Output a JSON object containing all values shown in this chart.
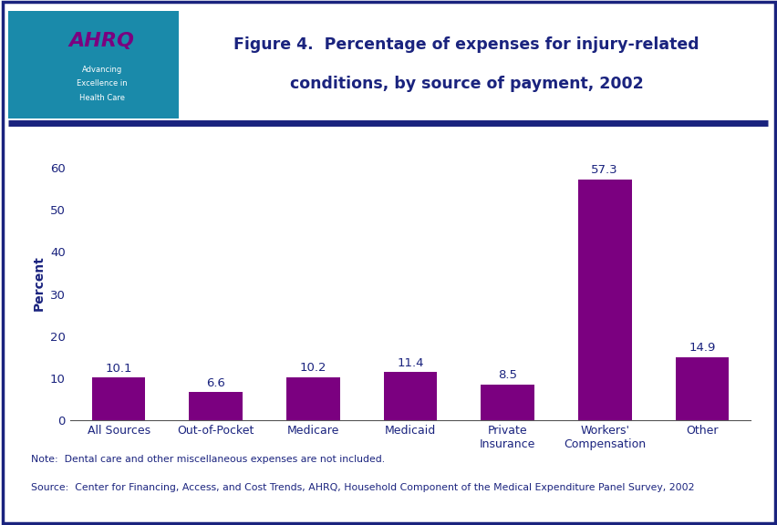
{
  "categories": [
    "All Sources",
    "Out-of-Pocket",
    "Medicare",
    "Medicaid",
    "Private\nInsurance",
    "Workers'\nCompensation",
    "Other"
  ],
  "values": [
    10.1,
    6.6,
    10.2,
    11.4,
    8.5,
    57.3,
    14.9
  ],
  "bar_color": "#7b0080",
  "title_line1": "Figure 4.  Percentage of expenses for injury-related",
  "title_line2": "conditions, by source of payment, 2002",
  "ylabel": "Percent",
  "yticks": [
    0,
    10,
    20,
    30,
    40,
    50,
    60
  ],
  "ylim": [
    0,
    65
  ],
  "title_color": "#1a237e",
  "axis_label_color": "#1a237e",
  "tick_label_color": "#1a237e",
  "value_label_color": "#1a237e",
  "note_line1": "Note:  Dental care and other miscellaneous expenses are not included.",
  "note_line2": "Source:  Center for Financing, Access, and Cost Trends, AHRQ, Household Component of the Medical Expenditure Panel Survey, 2002",
  "background_color": "#ffffff",
  "border_color": "#1a237e",
  "separator_color": "#1a237e",
  "header_bg": "#ffffff",
  "figsize": [
    8.53,
    5.76
  ],
  "dpi": 100
}
